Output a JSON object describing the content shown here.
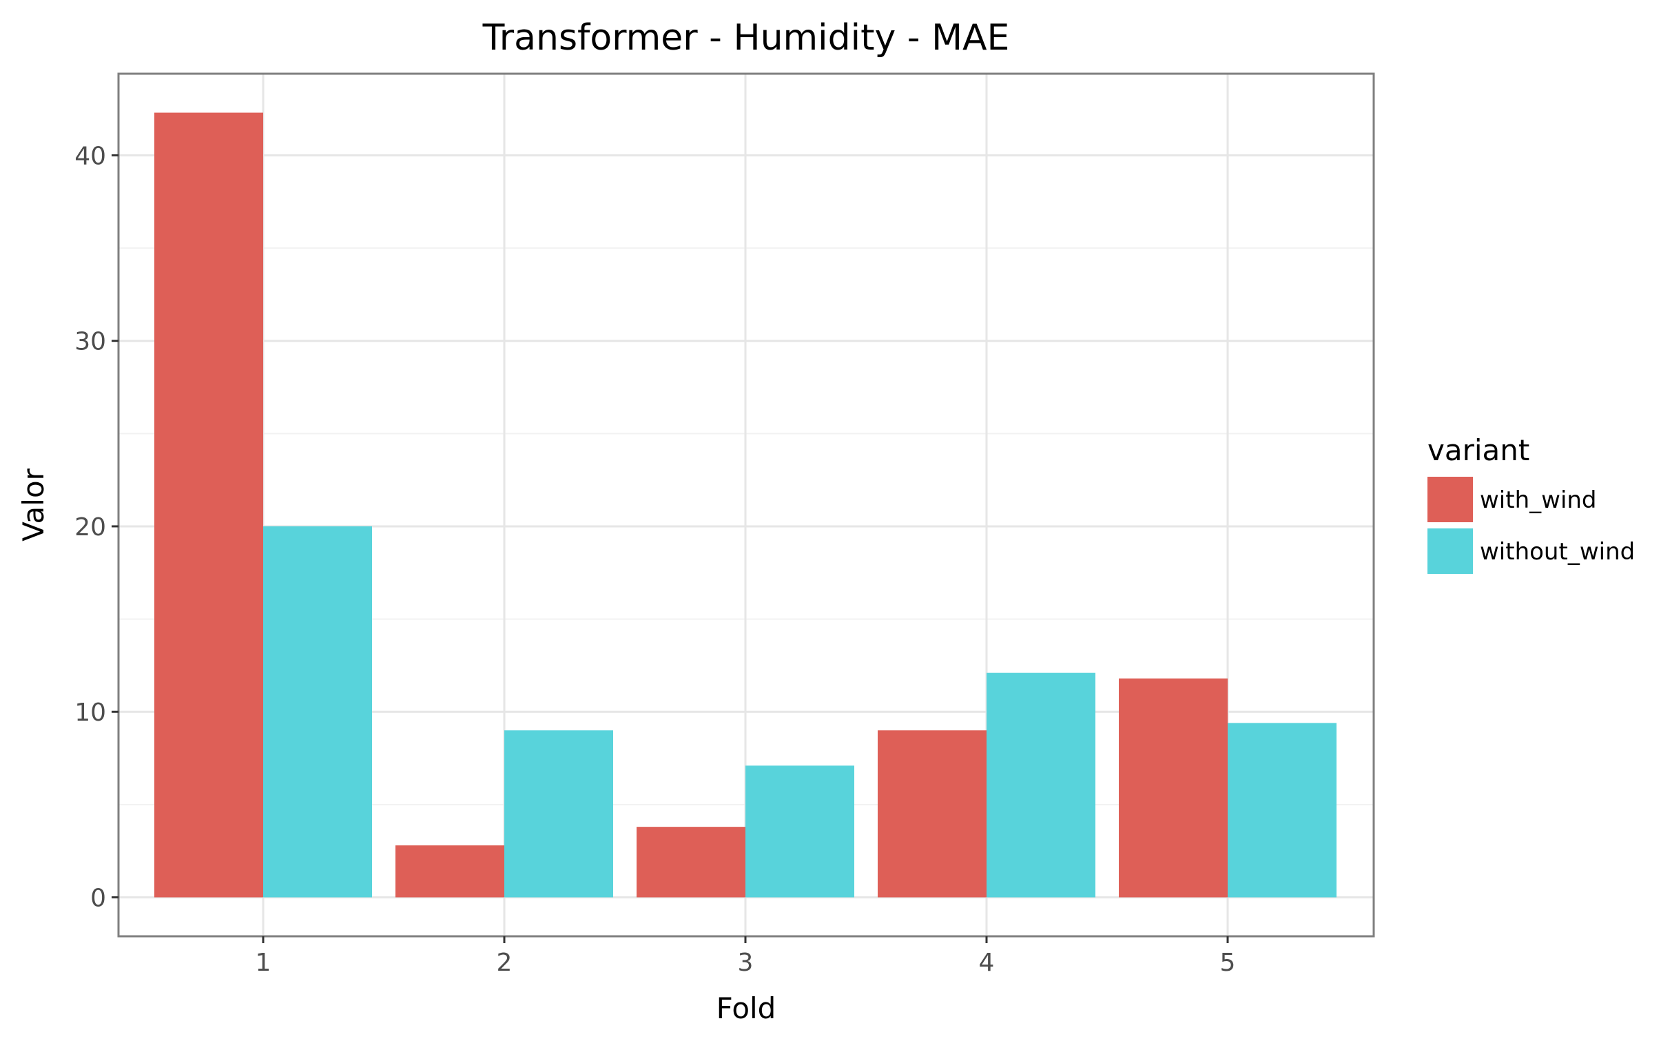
{
  "chart_data": {
    "type": "bar",
    "title": "Transformer - Humidity - MAE",
    "xlabel": "Fold",
    "ylabel": "Valor",
    "categories": [
      "1",
      "2",
      "3",
      "4",
      "5"
    ],
    "series": [
      {
        "name": "with_wind",
        "color": "#de5f57",
        "values": [
          42.3,
          2.8,
          3.8,
          9.0,
          11.8
        ]
      },
      {
        "name": "without_wind",
        "color": "#58d3db",
        "values": [
          20.0,
          9.0,
          7.1,
          12.1,
          9.4
        ]
      }
    ],
    "ylim": [
      -2.1,
      44.4
    ],
    "yticks": [
      0,
      10,
      20,
      30,
      40
    ],
    "ytick_labels": [
      "0",
      "10",
      "20",
      "30",
      "40"
    ],
    "grid": true,
    "legend": {
      "title": "variant",
      "position": "right"
    }
  }
}
